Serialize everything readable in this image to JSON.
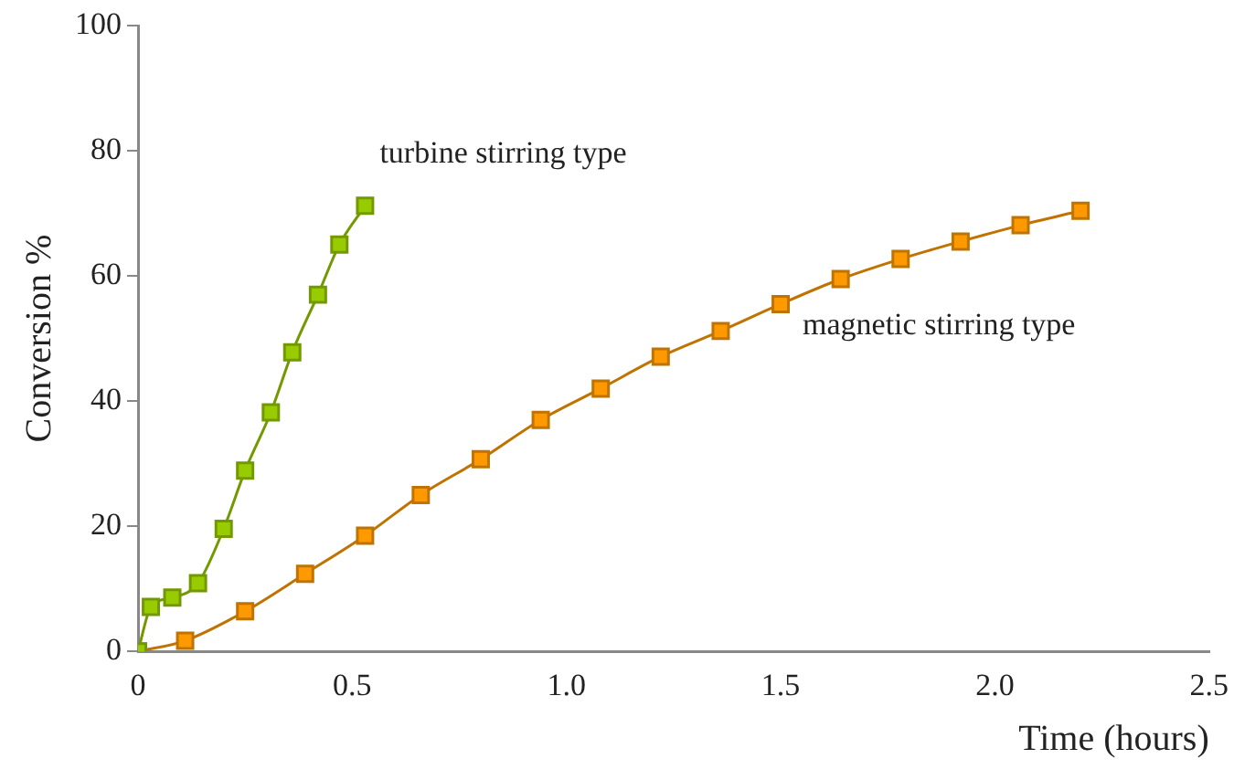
{
  "chart_data": {
    "type": "line",
    "xlabel": "Time (hours)",
    "ylabel": "Conversion %",
    "xlim": [
      0,
      2.5
    ],
    "xticks": [
      0,
      {
        "value": 0.5,
        "label": "0.5"
      },
      {
        "value": 1,
        "label": "1.0"
      },
      {
        "value": 1.5,
        "label": "1.5"
      },
      {
        "value": 2,
        "label": "2.0"
      },
      {
        "value": 2.5,
        "label": "2.5"
      }
    ],
    "ylim": [
      0,
      100
    ],
    "yticks": [
      0,
      20,
      40,
      60,
      80,
      100
    ],
    "grid": false,
    "legend": false,
    "marker": "square",
    "line_style": "solid",
    "series": [
      {
        "name": "turbine stirring type",
        "color": "#99cc00",
        "x": [
          0,
          0.03,
          0.08,
          0.14,
          0.2,
          0.25,
          0.31,
          0.36,
          0.42,
          0.47,
          0.53
        ],
        "values": [
          0,
          7.1,
          8.6,
          10.9,
          19.6,
          28.9,
          38.2,
          47.8,
          57,
          65,
          71.2
        ]
      },
      {
        "name": "magnetic stirring type",
        "color": "#ff9900",
        "x": [
          0,
          0.11,
          0.25,
          0.39,
          0.53,
          0.66,
          0.8,
          0.94,
          1.08,
          1.22,
          1.36,
          1.5,
          1.64,
          1.78,
          1.92,
          2.06,
          2.2
        ],
        "values": [
          0,
          1.7,
          6.4,
          12.4,
          18.5,
          25,
          30.7,
          37,
          42,
          47.1,
          51.2,
          55.5,
          59.5,
          62.7,
          65.5,
          68.1,
          70.4
        ]
      }
    ]
  }
}
